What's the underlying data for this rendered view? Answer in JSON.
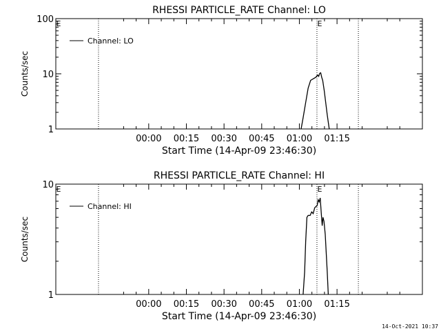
{
  "chart_data": [
    {
      "type": "line",
      "title": "RHESSI PARTICLE_RATE Channel: LO",
      "xlabel": "Start Time (14-Apr-09 23:46:30)",
      "ylabel": "Counts/sec",
      "y_scale": "log",
      "ylim": [
        1,
        100
      ],
      "y_ticks": [
        {
          "v": 1,
          "label": "1"
        },
        {
          "v": 10,
          "label": "10"
        },
        {
          "v": 100,
          "label": "100"
        }
      ],
      "x_unit": "minutes after 23:46:30",
      "xlim": [
        -23.5,
        122.5
      ],
      "x_ticks": [
        {
          "v": 13.5,
          "label": "00:00"
        },
        {
          "v": 28.5,
          "label": "00:15"
        },
        {
          "v": 43.5,
          "label": "00:30"
        },
        {
          "v": 58.5,
          "label": "00:45"
        },
        {
          "v": 73.5,
          "label": "01:00"
        },
        {
          "v": 88.5,
          "label": "01:15"
        }
      ],
      "event_markers": [
        {
          "x": -23.5,
          "label": "E"
        },
        {
          "x": 80.5,
          "label": "E"
        }
      ],
      "vertical_dotted_lines": [
        -6.5,
        80.5,
        97.0
      ],
      "legend": {
        "position": "top-left",
        "entries": [
          "Channel: LO"
        ]
      },
      "grid": false,
      "series": [
        {
          "name": "Channel: LO",
          "x": [
            74.2,
            75.0,
            76.0,
            77.0,
            78.0,
            79.0,
            80.0,
            80.8,
            81.2,
            81.6,
            82.0,
            82.4,
            82.8,
            83.4,
            84.0,
            84.6,
            85.4
          ],
          "y": [
            1.0,
            1.6,
            3.0,
            5.5,
            7.6,
            8.1,
            8.6,
            9.5,
            9.0,
            10.2,
            10.4,
            8.6,
            7.6,
            5.0,
            3.0,
            1.8,
            1.0
          ]
        }
      ]
    },
    {
      "type": "line",
      "title": "RHESSI PARTICLE_RATE Channel: HI",
      "xlabel": "Start Time (14-Apr-09 23:46:30)",
      "ylabel": "Counts/sec",
      "y_scale": "log",
      "ylim": [
        1,
        10
      ],
      "y_ticks": [
        {
          "v": 1,
          "label": "1"
        },
        {
          "v": 10,
          "label": "10"
        }
      ],
      "x_unit": "minutes after 23:46:30",
      "xlim": [
        -23.5,
        122.5
      ],
      "x_ticks": [
        {
          "v": 13.5,
          "label": "00:00"
        },
        {
          "v": 28.5,
          "label": "00:15"
        },
        {
          "v": 43.5,
          "label": "00:30"
        },
        {
          "v": 58.5,
          "label": "00:45"
        },
        {
          "v": 73.5,
          "label": "01:00"
        },
        {
          "v": 88.5,
          "label": "01:15"
        }
      ],
      "event_markers": [
        {
          "x": -23.5,
          "label": "E"
        },
        {
          "x": 80.5,
          "label": "E"
        }
      ],
      "vertical_dotted_lines": [
        -6.5,
        80.5,
        97.0
      ],
      "legend": {
        "position": "top-left",
        "entries": [
          "Channel: HI"
        ]
      },
      "grid": false,
      "series": [
        {
          "name": "Channel: HI",
          "x": [
            75.0,
            75.6,
            76.0,
            76.5,
            77.0,
            77.8,
            78.4,
            79.0,
            79.6,
            80.2,
            80.6,
            81.0,
            81.4,
            81.8,
            82.2,
            82.6,
            82.9,
            83.3,
            83.8,
            84.2,
            84.6,
            85.0
          ],
          "y": [
            1.0,
            1.6,
            3.0,
            5.0,
            5.2,
            5.2,
            5.6,
            5.4,
            6.1,
            6.3,
            6.4,
            7.2,
            6.9,
            7.5,
            5.5,
            4.2,
            5.0,
            4.6,
            3.5,
            2.4,
            1.6,
            1.0
          ]
        }
      ]
    }
  ],
  "footer": {
    "timestamp": "14-Oct-2021 10:37"
  }
}
